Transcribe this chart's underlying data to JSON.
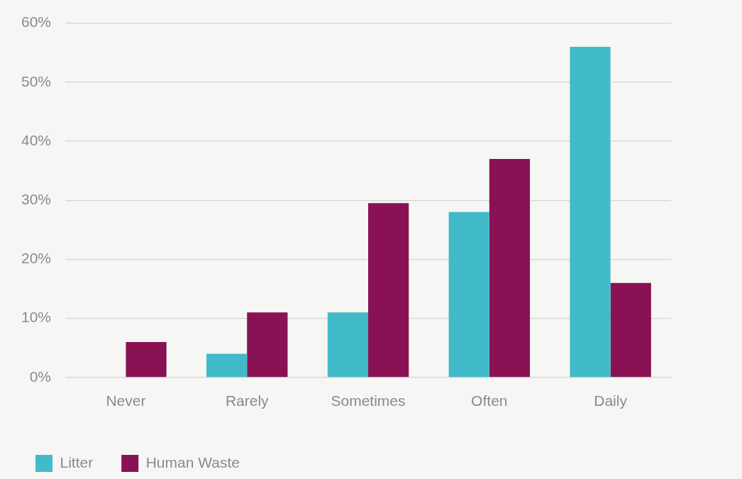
{
  "chart_data": {
    "type": "bar",
    "categories": [
      "Never",
      "Rarely",
      "Sometimes",
      "Often",
      "Daily"
    ],
    "series": [
      {
        "name": "Litter",
        "color": "#41bac9",
        "values": [
          0,
          4,
          11,
          28,
          56
        ]
      },
      {
        "name": "Human Waste",
        "color": "#881253",
        "values": [
          6,
          11,
          29.5,
          37,
          16
        ]
      }
    ],
    "ylim": [
      0,
      60
    ],
    "yticks": [
      {
        "value": 0,
        "label": "0%"
      },
      {
        "value": 10,
        "label": "10%"
      },
      {
        "value": 20,
        "label": "20%"
      },
      {
        "value": 30,
        "label": "30%"
      },
      {
        "value": 40,
        "label": "40%"
      },
      {
        "value": 50,
        "label": "50%"
      },
      {
        "value": 60,
        "label": "60%"
      }
    ],
    "grid": "y",
    "legend": "bottom left"
  }
}
